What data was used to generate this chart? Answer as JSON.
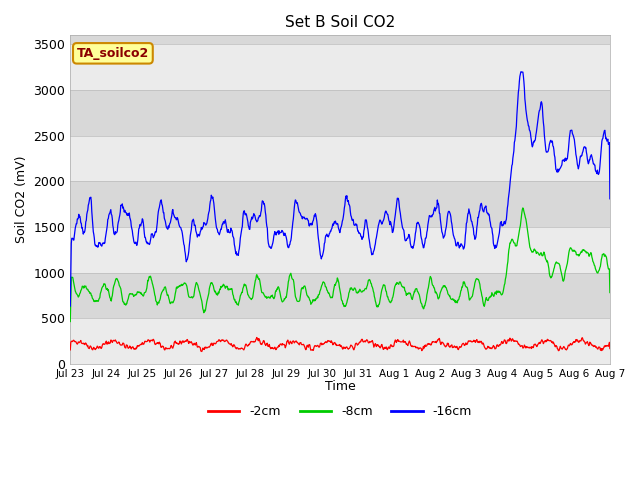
{
  "title": "Set B Soil CO2",
  "ylabel": "Soil CO2 (mV)",
  "xlabel": "Time",
  "annotation": "TA_soilco2",
  "ylim": [
    0,
    3600
  ],
  "yticks": [
    0,
    500,
    1000,
    1500,
    2000,
    2500,
    3000,
    3500
  ],
  "legend_labels": [
    "-2cm",
    "-8cm",
    "-16cm"
  ],
  "legend_colors": [
    "#ff0000",
    "#00cc00",
    "#0000ff"
  ],
  "band_colors": [
    "#ebebeb",
    "#d8d8d8"
  ],
  "n_days": 15,
  "seed": 42,
  "tick_labels": [
    "Jul 23",
    "Jul 24",
    "Jul 25",
    "Jul 26",
    "Jul 27",
    "Jul 28",
    "Jul 29",
    "Jul 30",
    "Jul 31",
    "Aug 1",
    "Aug 2",
    "Aug 3",
    "Aug 4",
    "Aug 5",
    "Aug 6",
    "Aug 7"
  ]
}
